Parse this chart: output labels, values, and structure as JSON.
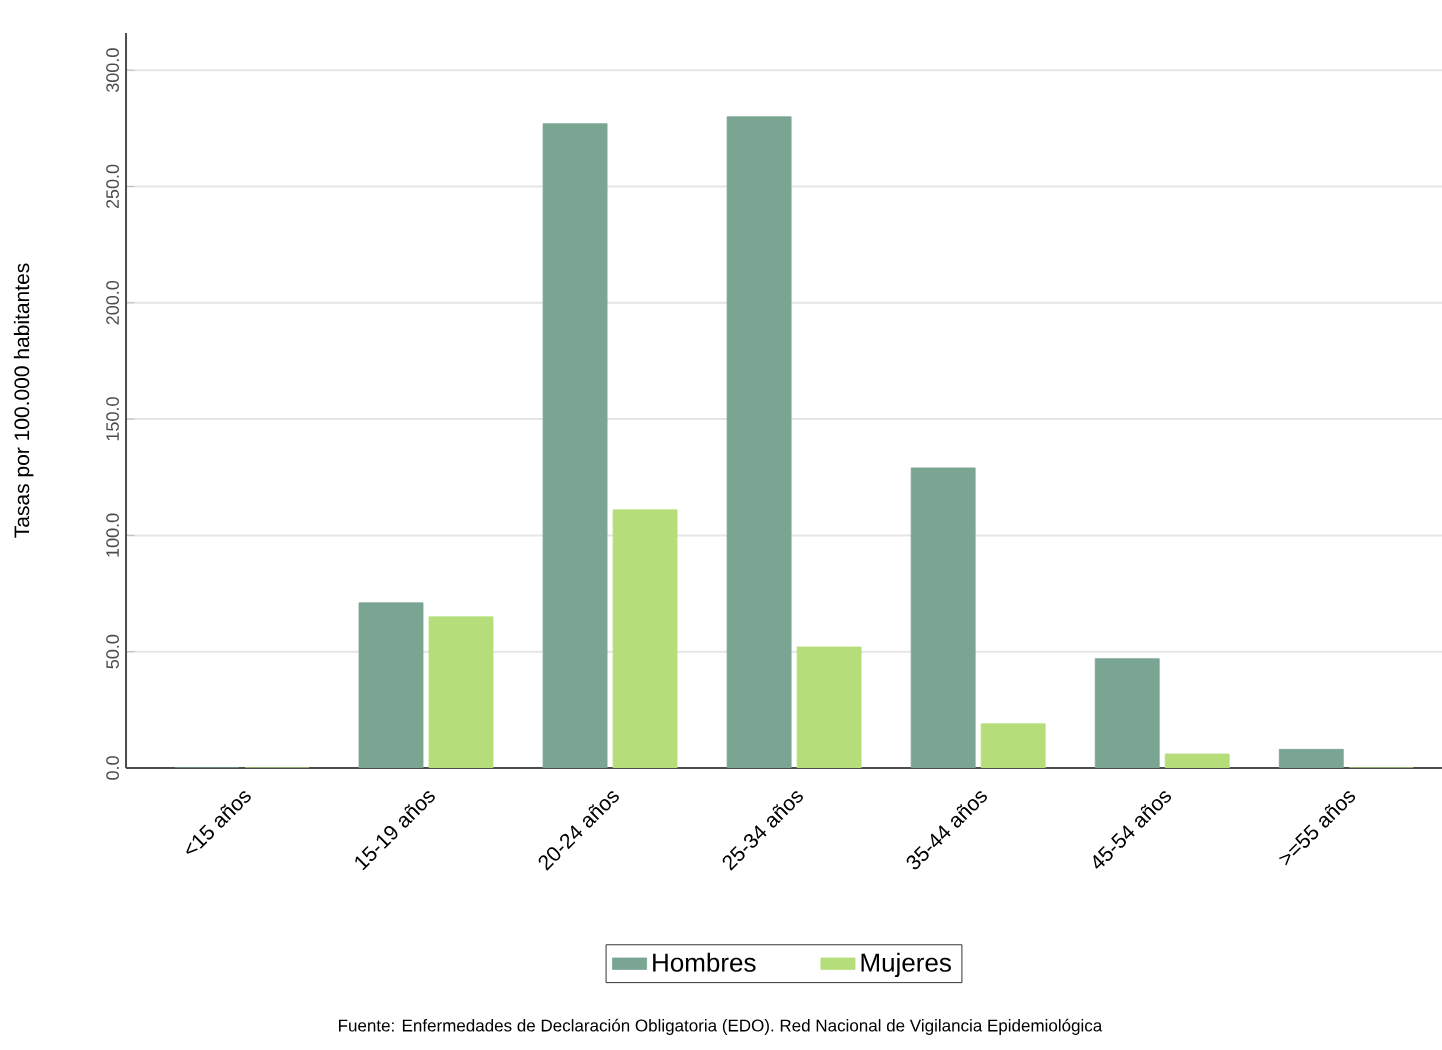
{
  "chart_data": {
    "type": "bar",
    "ylabel": "Tasas por 100.000 habitantes",
    "categories": [
      "<15 años",
      "15-19 años",
      "20-24 años",
      "25-34 años",
      "35-44 años",
      "45-54 años",
      ">=55 años"
    ],
    "series": [
      {
        "name": "Hombres",
        "color": "#7aa593",
        "values": [
          0,
          71,
          277,
          280,
          129,
          47,
          8
        ]
      },
      {
        "name": "Mujeres",
        "color": "#b5de7b",
        "values": [
          0,
          65,
          111,
          52,
          19,
          6,
          0
        ]
      }
    ],
    "ylim": [
      0,
      316
    ],
    "yticks": [
      {
        "value": 0,
        "label": "0.0"
      },
      {
        "value": 50,
        "label": "50.0"
      },
      {
        "value": 100,
        "label": "100.0"
      },
      {
        "value": 150,
        "label": "150.0"
      },
      {
        "value": 200,
        "label": "200.0"
      },
      {
        "value": 250,
        "label": "250.0"
      },
      {
        "value": 300,
        "label": "300.0"
      }
    ],
    "grid": "y",
    "legend": "bottom",
    "annotations": [
      "Fuente: Enfermedades de Declaración Obligatoria (EDO). Red Nacional de Vigilancia Epidemiológica"
    ]
  }
}
